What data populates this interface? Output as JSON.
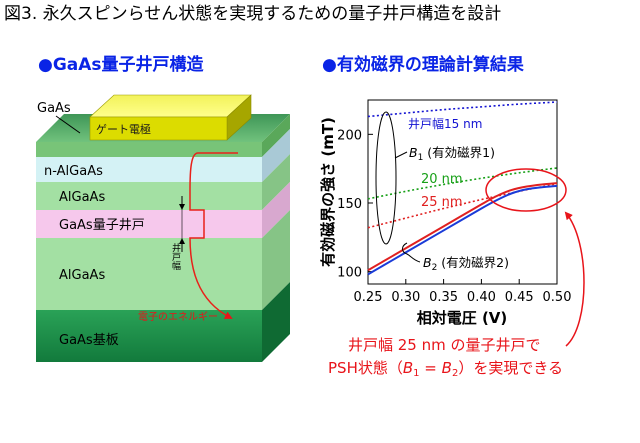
{
  "figure_title": "図3. 永久スピンらせん状態を実現するための量子井戸構造を設計",
  "left_panel": {
    "bullet": "●",
    "heading": "GaAs量子井戸構造",
    "cap_layer_label": "GaAs",
    "gate_label": "ゲート電極",
    "layer_labels": [
      "n-AlGaAs",
      "AlGaAs",
      "GaAs量子井戸",
      "AlGaAs",
      "GaAs基板"
    ],
    "well_width_label": "井戸幅",
    "energy_label": "電子のエネルギー"
  },
  "right_panel": {
    "bullet": "●",
    "heading": "有効磁界の理論計算結果"
  },
  "chart_data": {
    "type": "line",
    "xlabel": "相対電圧 (V)",
    "ylabel": "有効磁界の強さ (mT)",
    "xlim": [
      0.25,
      0.5
    ],
    "ylim": [
      91,
      225
    ],
    "xticks": [
      0.25,
      0.3,
      0.35,
      0.4,
      0.45,
      0.5
    ],
    "xtick_labels": [
      "0.25",
      "0.30",
      "0.35",
      "0.40",
      "0.45",
      "0.50"
    ],
    "yticks": [
      100,
      150,
      200
    ],
    "ytick_labels": [
      "100",
      "150",
      "200"
    ],
    "grid": false,
    "series": [
      {
        "name": "井戸幅15 nm",
        "color": "#1414d2",
        "dash": "dotted",
        "x": [
          0.25,
          0.3,
          0.35,
          0.4,
          0.45,
          0.5
        ],
        "y": [
          213,
          215.5,
          218,
          220,
          222,
          223.5
        ]
      },
      {
        "name": "20 nm",
        "color": "#18a018",
        "dash": "dotted",
        "x": [
          0.25,
          0.3,
          0.35,
          0.4,
          0.45,
          0.5
        ],
        "y": [
          153,
          158.5,
          163.5,
          168,
          172,
          175.5
        ]
      },
      {
        "name": "25 nm",
        "color": "#e02020",
        "dash": "dotted",
        "x": [
          0.25,
          0.3,
          0.35,
          0.4,
          0.45,
          0.5
        ],
        "y": [
          132,
          139,
          146,
          152.5,
          158.5,
          164
        ]
      },
      {
        "color": "#e02020",
        "dash": "solid",
        "x": [
          0.25,
          0.3,
          0.35,
          0.4,
          0.42,
          0.44,
          0.46,
          0.48,
          0.5
        ],
        "y": [
          101,
          117,
          133,
          149,
          155,
          159.5,
          162,
          163.5,
          164.5
        ]
      },
      {
        "color": "#1a3bd8",
        "dash": "solid",
        "x": [
          0.25,
          0.3,
          0.35,
          0.4,
          0.42,
          0.44,
          0.46,
          0.48,
          0.5
        ],
        "y": [
          98,
          114,
          130,
          146,
          152,
          157,
          160,
          161.5,
          162.5
        ]
      }
    ],
    "annotations": {
      "b1": {
        "symbol": "B",
        "subscript": "1",
        "text": " (有効磁界1)"
      },
      "b2": {
        "symbol": "B",
        "subscript": "2",
        "text": " (有効磁界2)"
      }
    }
  },
  "conclusion": {
    "line1": "井戸幅 25 nm の量子井戸で",
    "line2": {
      "prefix": "PSH状態（",
      "b1_symbol": "B",
      "b1_subscript": "1",
      "equals": " = ",
      "b2_symbol": "B",
      "b2_subscript": "2",
      "suffix": "）を実現できる"
    }
  },
  "colors": {
    "heading": "#0a24e6",
    "highlight": "#e8141a",
    "text": "#000000"
  }
}
